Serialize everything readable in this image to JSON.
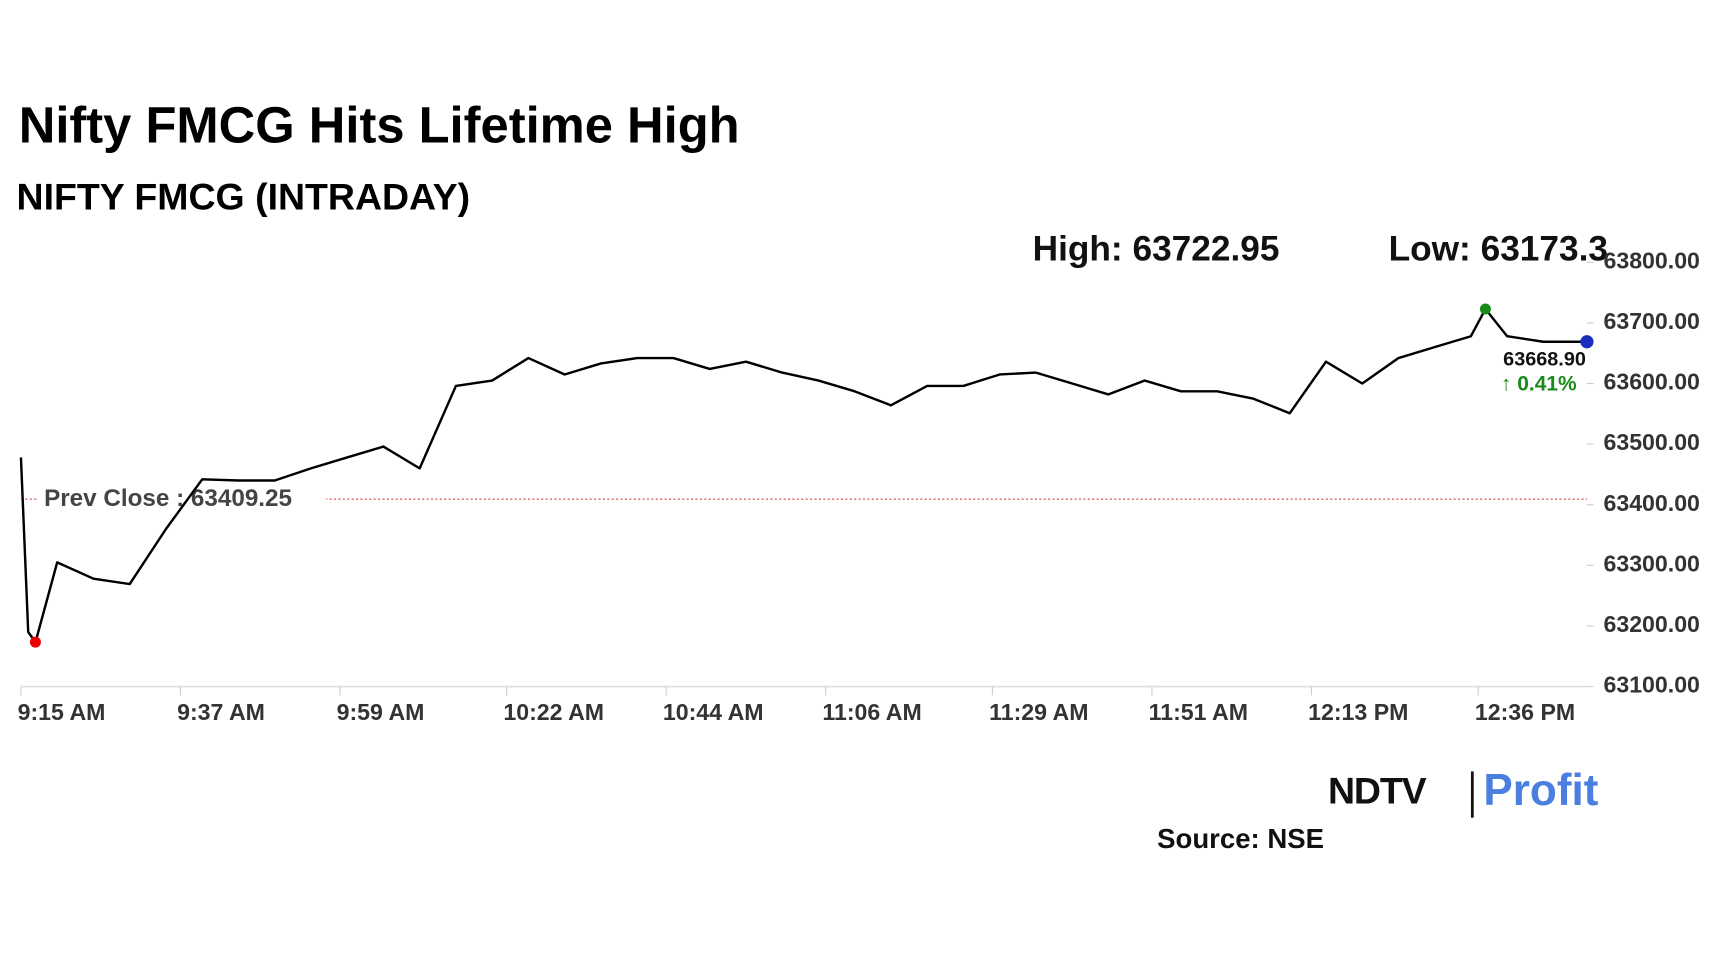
{
  "chart_data": {
    "type": "line",
    "title": "Nifty FMCG Hits Lifetime High",
    "subtitle": "NIFTY FMCG (INTRADAY)",
    "high": {
      "label": "High:",
      "value": 63722.95
    },
    "low": {
      "label": "Low:",
      "value": 63173.3
    },
    "prev_close": {
      "label": "Prev Close :",
      "value": 63409.25
    },
    "last": {
      "value": 63668.9,
      "label": "63668.90"
    },
    "change": {
      "value": 0.41,
      "label": "↑ 0.41%"
    },
    "x": [
      "9:15 AM",
      "9:16 AM",
      "9:17 AM",
      "9:20 AM",
      "9:25 AM",
      "9:30 AM",
      "9:35 AM",
      "9:40 AM",
      "9:45 AM",
      "9:50 AM",
      "9:55 AM",
      "10:00 AM",
      "10:05 AM",
      "10:10 AM",
      "10:15 AM",
      "10:20 AM",
      "10:25 AM",
      "10:30 AM",
      "10:35 AM",
      "10:40 AM",
      "10:45 AM",
      "10:50 AM",
      "10:55 AM",
      "11:00 AM",
      "11:05 AM",
      "11:10 AM",
      "11:15 AM",
      "11:20 AM",
      "11:25 AM",
      "11:30 AM",
      "11:35 AM",
      "11:40 AM",
      "11:45 AM",
      "11:50 AM",
      "11:55 AM",
      "12:00 PM",
      "12:05 PM",
      "12:10 PM",
      "12:15 PM",
      "12:20 PM",
      "12:25 PM",
      "12:30 PM",
      "12:35 PM",
      "12:37 PM",
      "12:40 PM",
      "12:45 PM",
      "12:51 PM"
    ],
    "series": [
      {
        "name": "NIFTY FMCG",
        "color": "#000000",
        "values": [
          63478,
          63190,
          63173.3,
          63305,
          63278,
          63269,
          63360,
          63442,
          63440,
          63440,
          63460,
          63478,
          63496,
          63460,
          63596,
          63605,
          63642,
          63615,
          63633,
          63642,
          63642,
          63624,
          63636,
          63618,
          63605,
          63587,
          63564,
          63596,
          63596,
          63615,
          63618,
          63600,
          63582,
          63605,
          63587,
          63587,
          63575,
          63551,
          63636,
          63600,
          63642,
          63660,
          63678,
          63722.95,
          63678,
          63669,
          63668.9
        ]
      }
    ],
    "xlim": [
      "9:15 AM",
      "12:51 PM"
    ],
    "xticks": [
      "9:15 AM",
      "9:37 AM",
      "9:59 AM",
      "10:22 AM",
      "10:44 AM",
      "11:06 AM",
      "11:29 AM",
      "11:51 AM",
      "12:13 PM",
      "12:36 PM"
    ],
    "ylim": [
      63100,
      63800
    ],
    "yticks": [
      {
        "value": 63100,
        "label": "63100.00"
      },
      {
        "value": 63200,
        "label": "63200.00"
      },
      {
        "value": 63300,
        "label": "63300.00"
      },
      {
        "value": 63400,
        "label": "63400.00"
      },
      {
        "value": 63500,
        "label": "63500.00"
      },
      {
        "value": 63600,
        "label": "63600.00"
      },
      {
        "value": 63700,
        "label": "63700.00"
      },
      {
        "value": 63800,
        "label": "63800.00"
      }
    ],
    "source": "Source: NSE",
    "brand": {
      "name": "NDTV",
      "sub": "Profit"
    }
  }
}
